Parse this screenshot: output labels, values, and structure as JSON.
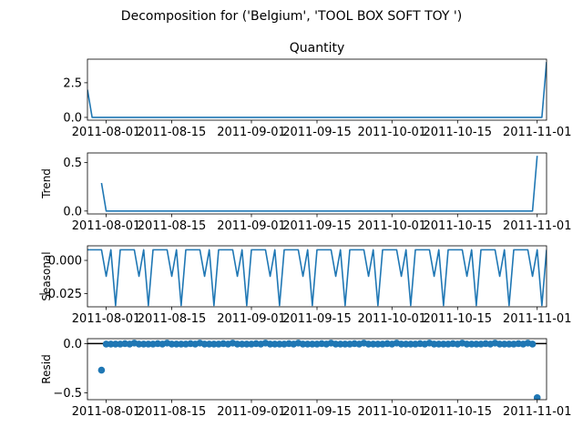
{
  "suptitle": "Decomposition for ('Belgium', 'TOOL BOX SOFT TOY ')",
  "colors": {
    "series": "#1f77b4",
    "zero_line": "#000000",
    "axes": "#000000"
  },
  "chart_data": [
    {
      "type": "line",
      "name": "observed",
      "title": "Quantity",
      "ylabel": "",
      "xlim": [
        "2011-07-28",
        "2011-11-03"
      ],
      "ylim": [
        -0.2,
        4.2
      ],
      "yticks": [
        0.0,
        2.5
      ],
      "ytick_labels": [
        "0.0",
        "2.5"
      ],
      "xticks": [
        "2011-08-01",
        "2011-08-15",
        "2011-09-01",
        "2011-09-15",
        "2011-10-01",
        "2011-10-15",
        "2011-11-01"
      ],
      "x": [
        "2011-07-28",
        "2011-07-29",
        "2011-11-02",
        "2011-11-03"
      ],
      "y": [
        2,
        0,
        0,
        4
      ]
    },
    {
      "type": "line",
      "name": "trend",
      "title": "",
      "ylabel": "Trend",
      "xlim": [
        "2011-07-28",
        "2011-11-03"
      ],
      "ylim": [
        -0.03,
        0.6
      ],
      "yticks": [
        0.0,
        0.5
      ],
      "ytick_labels": [
        "0.0",
        "0.5"
      ],
      "xticks": [
        "2011-08-01",
        "2011-08-15",
        "2011-09-01",
        "2011-09-15",
        "2011-10-01",
        "2011-10-15",
        "2011-11-01"
      ],
      "x": [
        "2011-07-31",
        "2011-08-01",
        "2011-10-31",
        "2011-11-01"
      ],
      "y": [
        0.29,
        0.0,
        0.0,
        0.57
      ]
    },
    {
      "type": "line",
      "name": "seasonal",
      "title": "",
      "ylabel": "Seasonal",
      "xlim": [
        "2011-07-28",
        "2011-11-03"
      ],
      "ylim": [
        -0.035,
        0.011
      ],
      "yticks": [
        0.0,
        -0.025
      ],
      "ytick_labels": [
        "0.000",
        "−0.025"
      ],
      "xticks": [
        "2011-08-01",
        "2011-08-15",
        "2011-09-01",
        "2011-09-15",
        "2011-10-01",
        "2011-10-15",
        "2011-11-01"
      ],
      "x_start": "2011-07-28",
      "x_end": "2011-11-03",
      "period_pattern": [
        0.008,
        0.008,
        0.008,
        0.008,
        -0.012,
        0.008,
        -0.034
      ]
    },
    {
      "type": "scatter",
      "name": "resid",
      "title": "",
      "ylabel": "Resid",
      "xlim": [
        "2011-07-28",
        "2011-11-03"
      ],
      "ylim": [
        -0.57,
        0.05
      ],
      "yticks": [
        0.0,
        -0.5
      ],
      "ytick_labels": [
        "0.0",
        "−0.5"
      ],
      "xticks": [
        "2011-08-01",
        "2011-08-15",
        "2011-09-01",
        "2011-09-15",
        "2011-10-01",
        "2011-10-15",
        "2011-11-01"
      ],
      "zero_line": true,
      "x_start": "2011-08-01",
      "x_end": "2011-10-31",
      "base_pattern": [
        -0.005,
        -0.005,
        -0.005,
        -0.005,
        0.0,
        -0.005,
        0.005
      ],
      "outliers": [
        {
          "x": "2011-07-31",
          "y": -0.27
        },
        {
          "x": "2011-11-01",
          "y": -0.55
        }
      ]
    }
  ]
}
